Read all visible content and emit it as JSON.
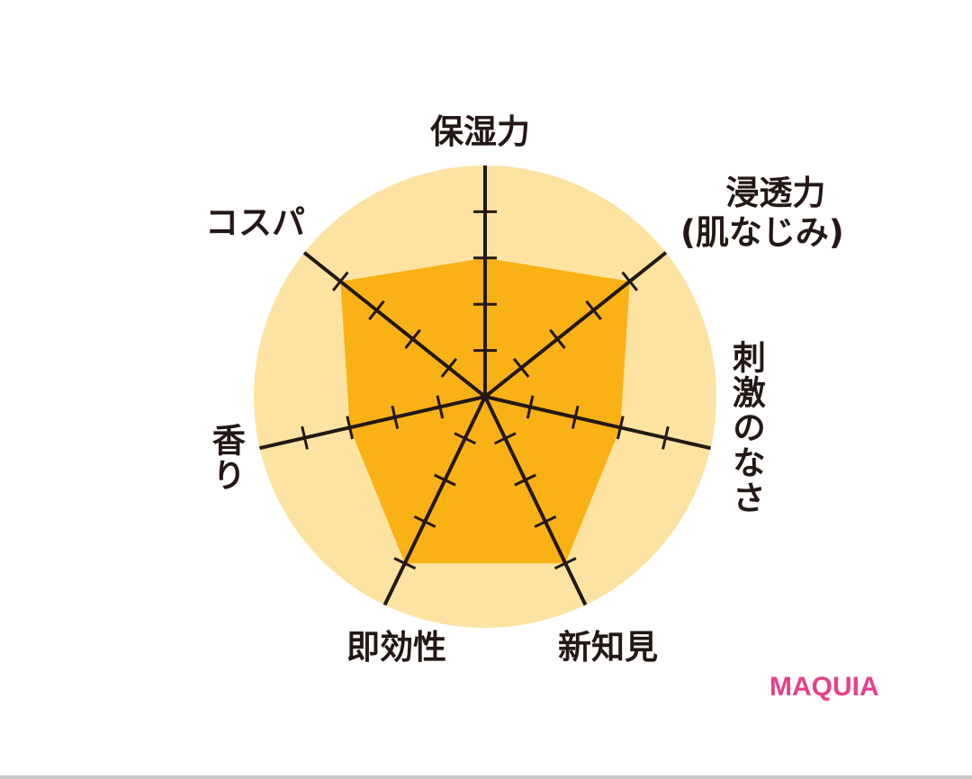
{
  "chart_data": {
    "type": "radar",
    "axes": [
      "保湿力",
      "浸透力\n(肌なじみ)",
      "刺激のなさ",
      "新知見",
      "即効性",
      "香り",
      "コスパ"
    ],
    "axis_labels": {
      "a0": "保湿力",
      "a1_line1": "浸透力",
      "a1_line2": "(肌なじみ)",
      "a2": "刺激のなさ",
      "a3": "新知見",
      "a4": "即効性",
      "a5": "香り",
      "a6": "コスパ"
    },
    "values": [
      3,
      4,
      3,
      4,
      4,
      3,
      4
    ],
    "range": [
      0,
      5
    ],
    "ticks_per_axis": 4,
    "colors": {
      "background_circle": "#FDE3A1",
      "fill": "#F9B115",
      "axis": "#231815"
    }
  },
  "brand": {
    "logo_text": "MAQUIA",
    "color": "#E5418A"
  }
}
